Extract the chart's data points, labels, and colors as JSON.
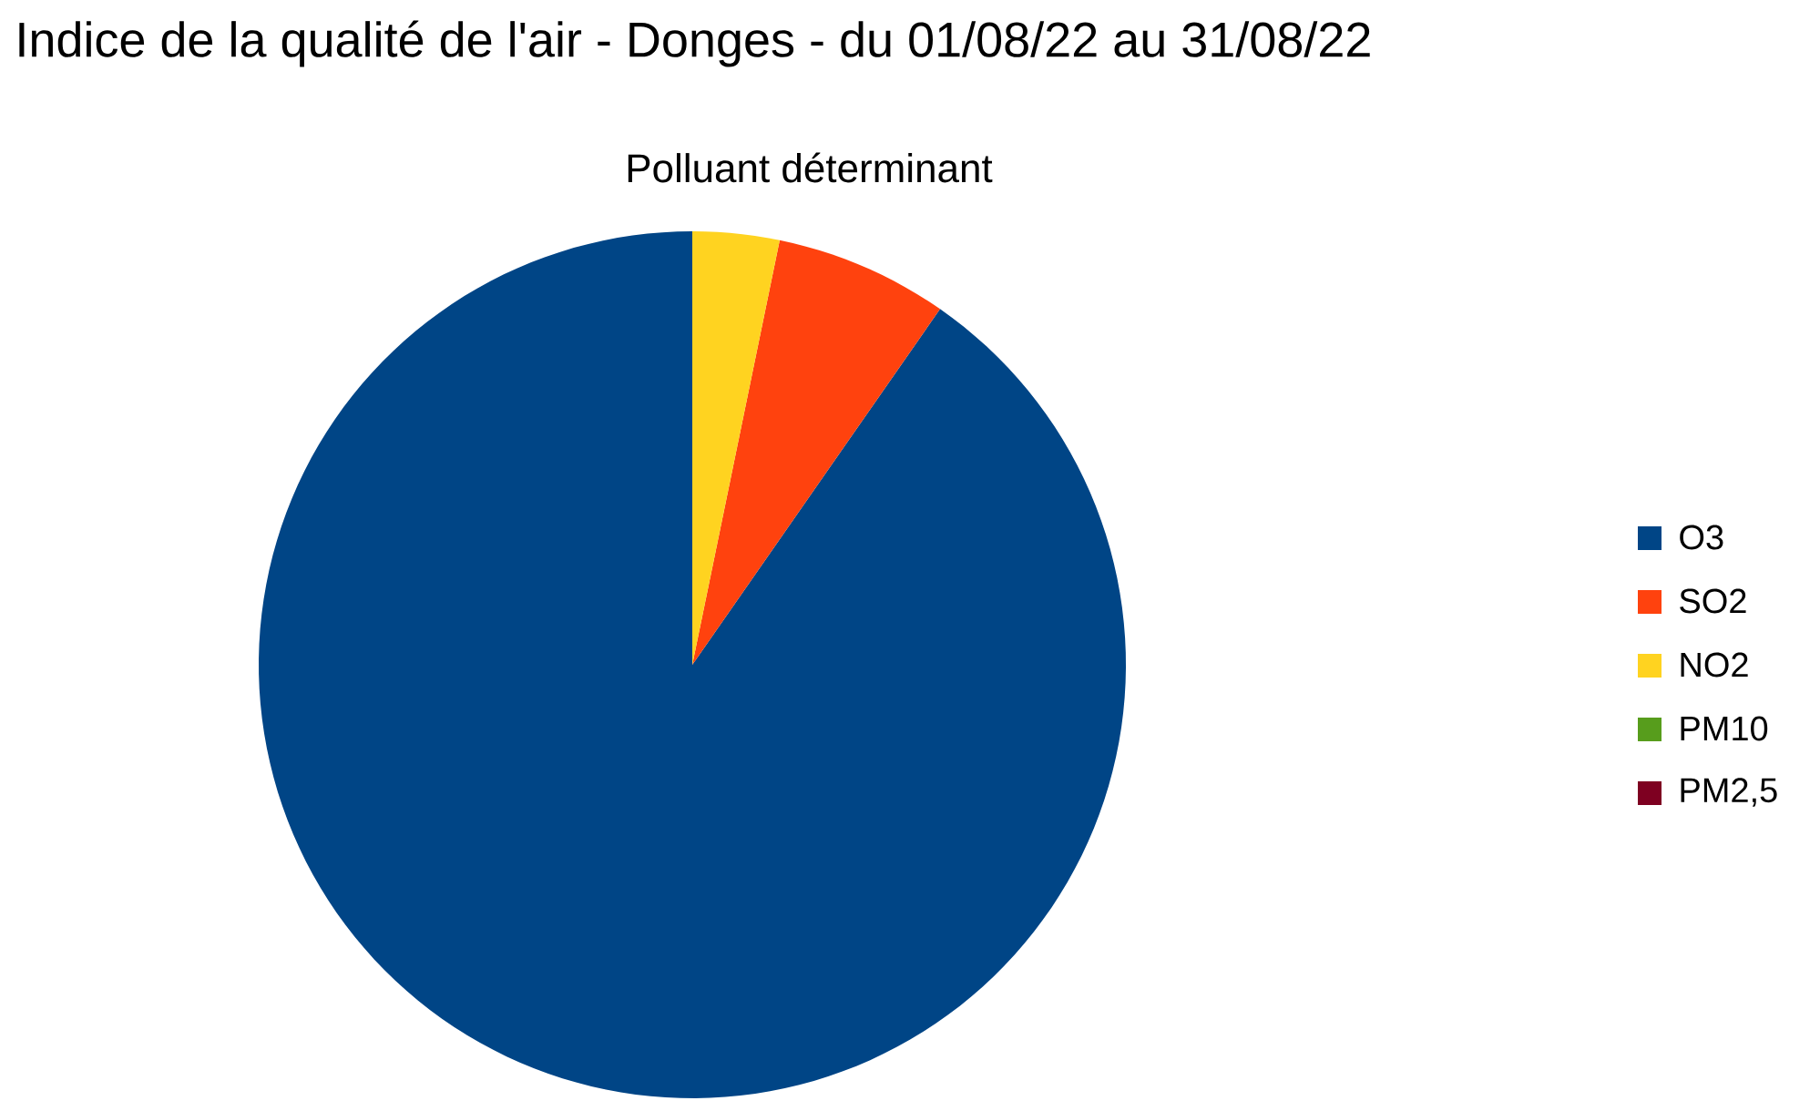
{
  "chart_data": {
    "type": "pie",
    "title": "Indice de la qualité de l'air - Donges - du 01/08/22 au 31/08/22",
    "subtitle": "Polluant déterminant",
    "categories": [
      "O3",
      "SO2",
      "NO2",
      "PM10",
      "PM2,5"
    ],
    "values": [
      90.32,
      6.45,
      3.23,
      0,
      0
    ],
    "colors": [
      "#004586",
      "#ff420e",
      "#ffd320",
      "#579d1c",
      "#7e0021"
    ],
    "legend": "right"
  }
}
